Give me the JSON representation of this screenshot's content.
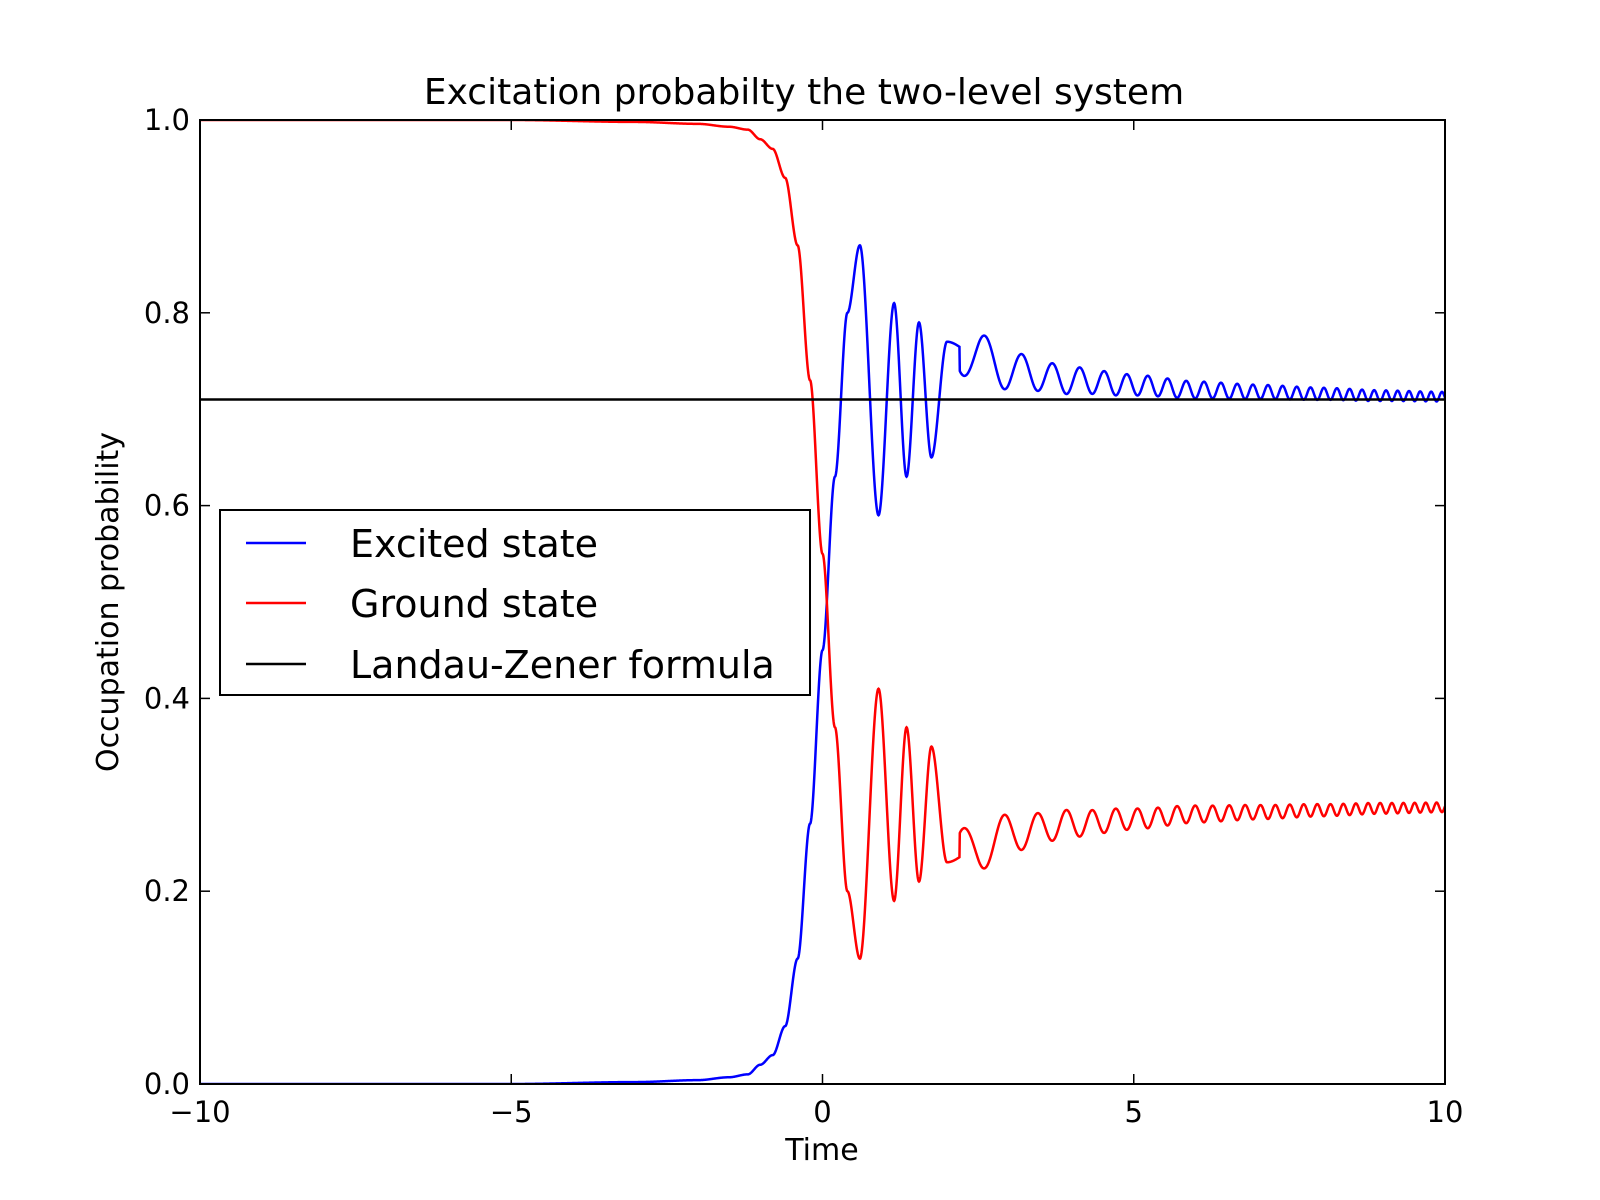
{
  "chart_data": {
    "type": "line",
    "title": "Excitation probabilty the two-level system",
    "xlabel": "Time",
    "ylabel": "Occupation probability",
    "xlim": [
      -10,
      10
    ],
    "ylim": [
      0.0,
      1.0
    ],
    "xticks": [
      -10,
      -5,
      0,
      5,
      10
    ],
    "xtick_labels": [
      "−10",
      "−5",
      "0",
      "5",
      "10"
    ],
    "yticks": [
      0.0,
      0.2,
      0.4,
      0.6,
      0.8,
      1.0
    ],
    "ytick_labels": [
      "0.0",
      "0.2",
      "0.4",
      "0.6",
      "0.8",
      "1.0"
    ],
    "grid": false,
    "legend_position": "center-left",
    "series": [
      {
        "name": "Excited state",
        "color": "#0000ff",
        "x": [
          -10,
          -5,
          -3,
          -2,
          -1.5,
          -1.2,
          -1.0,
          -0.8,
          -0.6,
          -0.4,
          -0.2,
          0.0,
          0.2,
          0.4,
          0.6,
          0.9,
          1.15,
          1.35,
          1.55,
          1.75,
          2.0,
          2.5,
          3,
          4,
          5,
          6,
          7,
          8,
          9,
          10
        ],
        "y": [
          0.0,
          0.0,
          0.002,
          0.004,
          0.007,
          0.01,
          0.02,
          0.03,
          0.06,
          0.13,
          0.27,
          0.45,
          0.63,
          0.8,
          0.87,
          0.59,
          0.81,
          0.63,
          0.79,
          0.65,
          0.77,
          0.755,
          0.74,
          0.73,
          0.725,
          0.72,
          0.718,
          0.716,
          0.714,
          0.713
        ],
        "settles_to": 0.713
      },
      {
        "name": "Ground state",
        "color": "#ff0000",
        "x": [
          -10,
          -5,
          -3,
          -2,
          -1.5,
          -1.2,
          -1.0,
          -0.8,
          -0.6,
          -0.4,
          -0.2,
          0.0,
          0.2,
          0.4,
          0.6,
          0.9,
          1.15,
          1.35,
          1.55,
          1.75,
          2.0,
          2.5,
          3,
          4,
          5,
          6,
          7,
          8,
          9,
          10
        ],
        "y": [
          1.0,
          1.0,
          0.998,
          0.996,
          0.993,
          0.99,
          0.98,
          0.97,
          0.94,
          0.87,
          0.73,
          0.55,
          0.37,
          0.2,
          0.13,
          0.41,
          0.19,
          0.37,
          0.21,
          0.35,
          0.23,
          0.245,
          0.26,
          0.27,
          0.275,
          0.28,
          0.282,
          0.284,
          0.286,
          0.287
        ],
        "settles_to": 0.287
      },
      {
        "name": "Landau-Zener formula",
        "color": "#000000",
        "x": [
          -10,
          10
        ],
        "y": [
          0.71,
          0.71
        ]
      }
    ]
  }
}
